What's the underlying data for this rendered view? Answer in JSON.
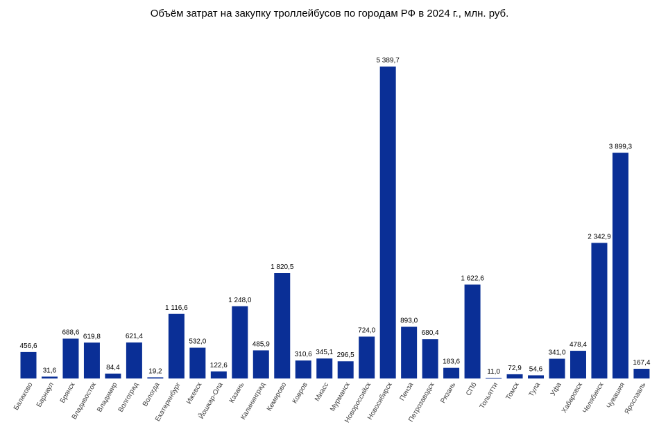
{
  "chart_data": {
    "type": "bar",
    "title": "Объём затрат на закупку троллейбусов по городам РФ в 2024 г., млн. руб.",
    "xlabel": "",
    "ylabel": "",
    "ylim": [
      0,
      5389.7
    ],
    "grid": false,
    "legend": "none",
    "bar_color": "#0a2f96",
    "categories": [
      "Балаково",
      "Барнаул",
      "Брянск",
      "Владивосток",
      "Владимир",
      "Волгоград",
      "Вологда",
      "Екатеринбург",
      "Ижевск",
      "Йошкар-Ола",
      "Казань",
      "Калининград",
      "Кемерово",
      "Ковров",
      "Миасс",
      "Мурманск",
      "Новороссийск",
      "Новосибирск",
      "Пенза",
      "Петрозаводск",
      "Рязань",
      "СПб",
      "Тольятти",
      "Томск",
      "Тула",
      "Уфа",
      "Хабаровск",
      "Челябинск",
      "Чувашия",
      "Ярославль"
    ],
    "values": [
      456.6,
      31.6,
      688.6,
      619.8,
      84.4,
      621.4,
      19.2,
      1116.6,
      532.0,
      122.6,
      1248.0,
      485.9,
      1820.5,
      310.6,
      345.1,
      296.5,
      724.0,
      5389.7,
      893.0,
      680.4,
      183.6,
      1622.6,
      11.0,
      72.9,
      54.6,
      341.0,
      478.4,
      2342.9,
      3899.3,
      167.4
    ],
    "labels": [
      "456,6",
      "31,6",
      "688,6",
      "619,8",
      "84,4",
      "621,4",
      "19,2",
      "1 116,6",
      "532,0",
      "122,6",
      "1 248,0",
      "485,9",
      "1 820,5",
      "310,6",
      "345,1",
      "296,5",
      "724,0",
      "5 389,7",
      "893,0",
      "680,4",
      "183,6",
      "1 622,6",
      "11,0",
      "72,9",
      "54,6",
      "341,0",
      "478,4",
      "2 342,9",
      "3 899,3",
      "167,4"
    ]
  }
}
